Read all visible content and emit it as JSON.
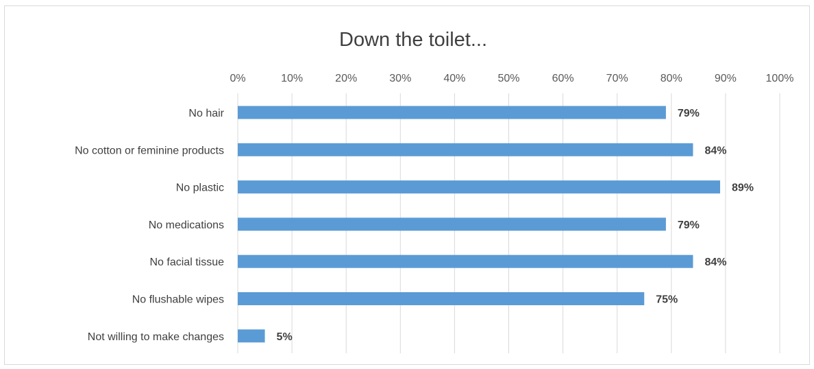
{
  "chart_data": {
    "type": "bar",
    "orientation": "horizontal",
    "title": "Down the toilet...",
    "categories": [
      "No hair",
      "No cotton or feminine products",
      "No plastic",
      "No medications",
      "No facial tissue",
      "No flushable wipes",
      "Not willing to make changes"
    ],
    "values": [
      79,
      84,
      89,
      79,
      84,
      75,
      5
    ],
    "value_labels": [
      "79%",
      "84%",
      "89%",
      "79%",
      "84%",
      "75%",
      "5%"
    ],
    "xlim": [
      0,
      100
    ],
    "x_ticks": [
      "0%",
      "10%",
      "20%",
      "30%",
      "40%",
      "50%",
      "60%",
      "70%",
      "80%",
      "90%",
      "100%"
    ],
    "x_axis_position": "top",
    "grid": true,
    "bar_color": "#5b9bd5"
  }
}
